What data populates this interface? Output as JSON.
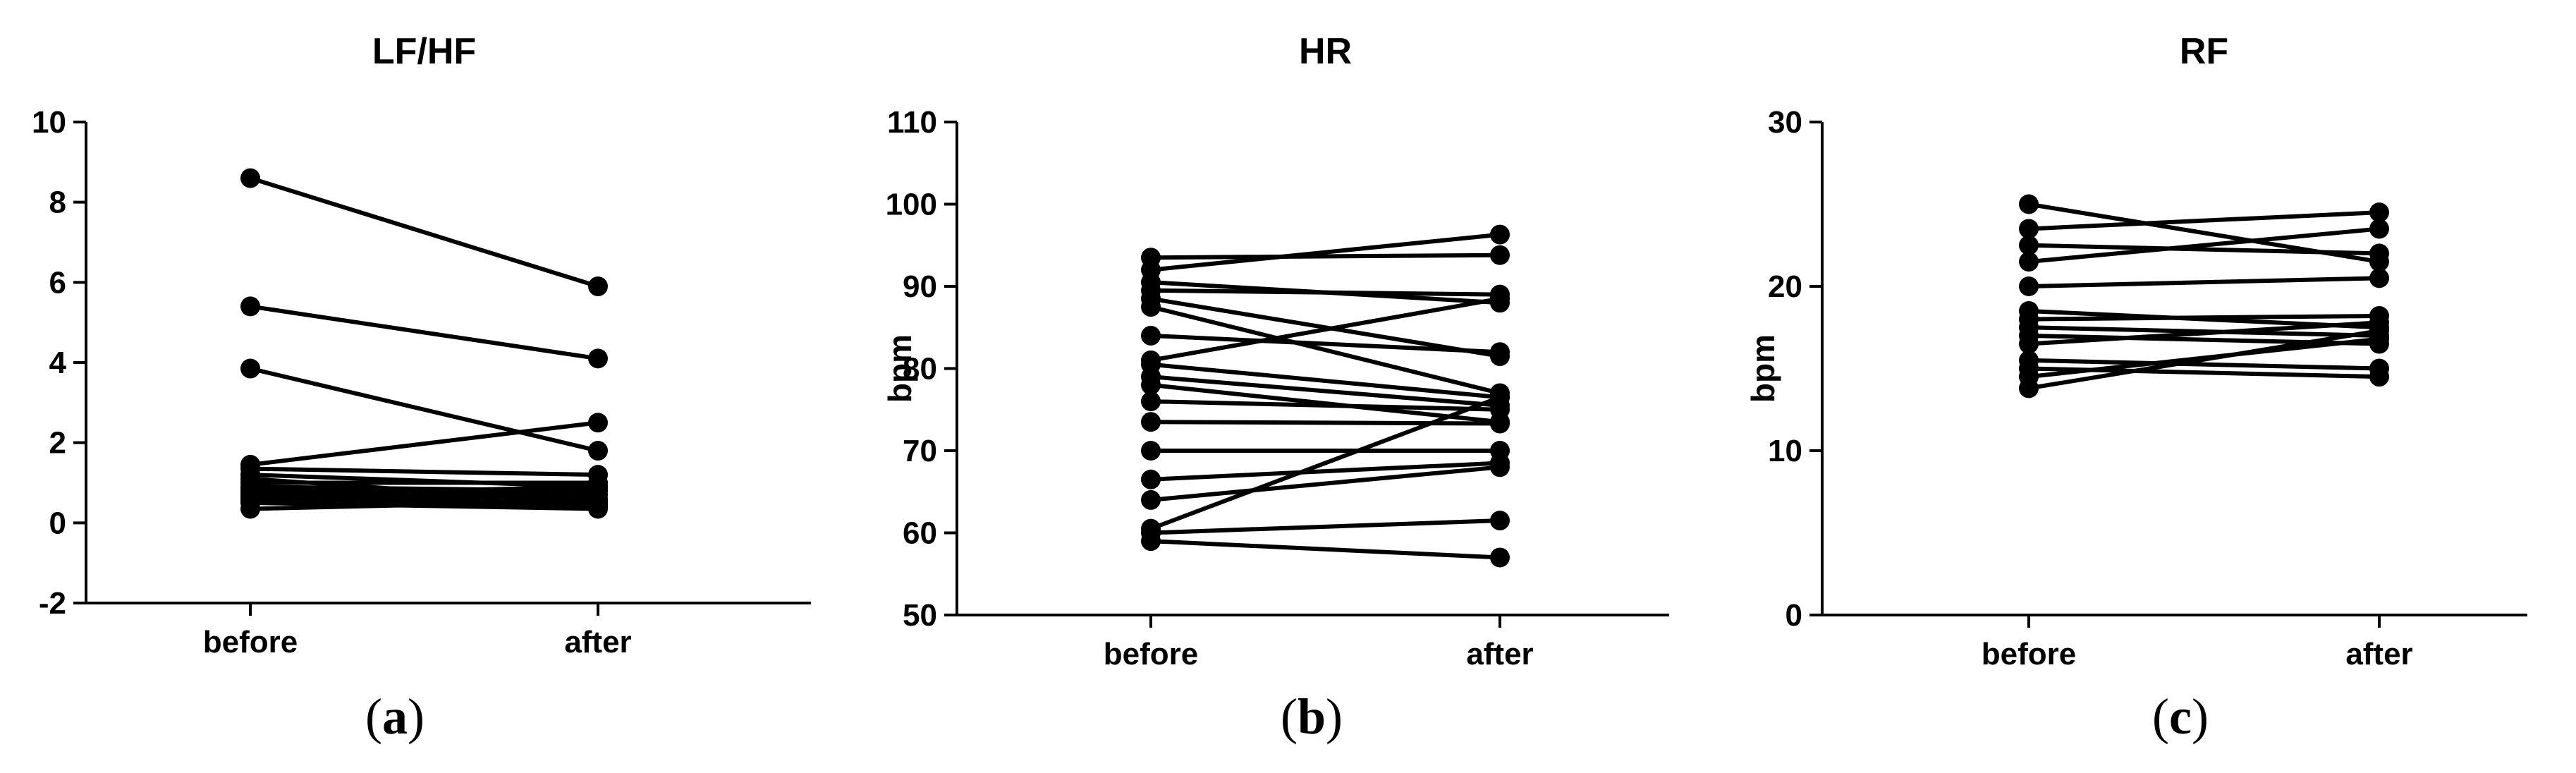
{
  "chart_data": [
    {
      "type": "line",
      "title": "LF/HF",
      "ylabel": "",
      "caption": "a",
      "categories": [
        "before",
        "after"
      ],
      "ylim": [
        -2,
        10
      ],
      "yticks": [
        -2,
        0,
        2,
        4,
        6,
        8,
        10
      ],
      "grid": false,
      "marker": "circle",
      "pairs": [
        [
          8.6,
          5.9
        ],
        [
          5.4,
          4.1
        ],
        [
          3.85,
          1.8
        ],
        [
          1.45,
          2.5
        ],
        [
          1.35,
          1.2
        ],
        [
          1.2,
          0.9
        ],
        [
          1.1,
          0.5
        ],
        [
          1.0,
          1.0
        ],
        [
          0.9,
          0.8
        ],
        [
          0.85,
          0.7
        ],
        [
          0.8,
          0.4
        ],
        [
          0.75,
          0.6
        ],
        [
          0.7,
          0.9
        ],
        [
          0.65,
          0.5
        ],
        [
          0.6,
          0.45
        ],
        [
          0.55,
          0.8
        ],
        [
          0.5,
          0.35
        ],
        [
          0.35,
          0.55
        ]
      ]
    },
    {
      "type": "line",
      "title": "HR",
      "ylabel": "bpm",
      "caption": "b",
      "categories": [
        "before",
        "after"
      ],
      "ylim": [
        50,
        110
      ],
      "yticks": [
        50,
        60,
        70,
        80,
        90,
        100,
        110
      ],
      "grid": false,
      "marker": "circle",
      "pairs": [
        [
          93.5,
          93.8
        ],
        [
          92.0,
          96.3
        ],
        [
          90.5,
          88.0
        ],
        [
          89.5,
          89.0
        ],
        [
          88.5,
          81.5
        ],
        [
          87.5,
          77.0
        ],
        [
          84.0,
          82.0
        ],
        [
          81.0,
          88.5
        ],
        [
          80.5,
          76.5
        ],
        [
          79.0,
          75.5
        ],
        [
          78.0,
          73.5
        ],
        [
          76.0,
          75.0
        ],
        [
          73.5,
          73.3
        ],
        [
          70.0,
          70.0
        ],
        [
          66.5,
          68.5
        ],
        [
          64.0,
          68.0
        ],
        [
          60.5,
          76.5
        ],
        [
          60.0,
          61.5
        ],
        [
          59.0,
          57.0
        ]
      ]
    },
    {
      "type": "line",
      "title": "RF",
      "ylabel": "bpm",
      "caption": "c",
      "categories": [
        "before",
        "after"
      ],
      "ylim": [
        0,
        30
      ],
      "yticks": [
        0,
        10,
        20,
        30
      ],
      "grid": false,
      "marker": "circle",
      "pairs": [
        [
          25.0,
          21.5
        ],
        [
          23.5,
          24.5
        ],
        [
          22.5,
          22.0
        ],
        [
          21.5,
          23.5
        ],
        [
          20.0,
          20.5
        ],
        [
          18.5,
          17.5
        ],
        [
          18.0,
          18.2
        ],
        [
          17.5,
          17.0
        ],
        [
          17.0,
          16.5
        ],
        [
          16.5,
          17.8
        ],
        [
          15.5,
          15.0
        ],
        [
          15.0,
          14.5
        ],
        [
          14.5,
          16.8
        ],
        [
          13.8,
          17.3
        ]
      ]
    }
  ]
}
